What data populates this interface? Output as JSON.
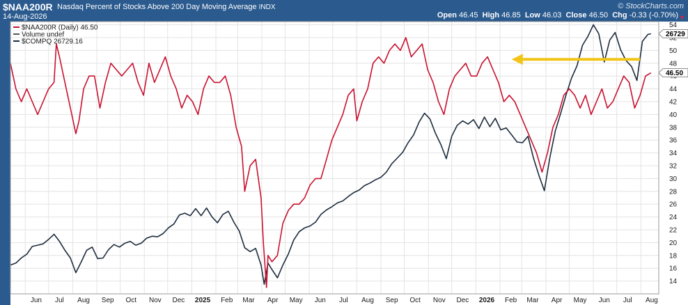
{
  "header": {
    "symbol": "$NAA200R",
    "description": "Nasdaq Percent of Stocks Above 200 Day Moving Average",
    "exchange": "INDX",
    "date": "14-Aug-2026",
    "brand": "© StockCharts.com",
    "open_label": "Open",
    "open": "46.45",
    "high_label": "High",
    "high": "46.85",
    "low_label": "Low",
    "low": "46.03",
    "close_label": "Close",
    "close": "46.50",
    "chg_label": "Chg",
    "chg": "-0.33 (-0.70%)",
    "chg_arrow": "▼"
  },
  "legend": [
    {
      "label": "$NAA200R (Daily) 46.50",
      "color": "#c8102e"
    },
    {
      "label": "Volume undef",
      "color": "#555555"
    },
    {
      "label": "$COMPQ 26729.16",
      "color": "#1c2b3d"
    }
  ],
  "colors": {
    "naa": "#c8102e",
    "compq": "#1c2b3d",
    "arrow": "#f2c418",
    "frame": "#2a5a8e",
    "grid": "#e3e3e3"
  },
  "tags": {
    "compq": "26729",
    "naa": "46.50"
  },
  "chart_data": {
    "type": "line",
    "x_tick_labels": [
      "Jun",
      "Jul",
      "Aug",
      "Sep",
      "Oct",
      "Nov",
      "Dec",
      "2025",
      "Feb",
      "Mar",
      "Apr",
      "May",
      "Jun",
      "Jul",
      "Aug",
      "Sep",
      "Oct",
      "Nov",
      "Dec",
      "2026",
      "Feb",
      "Mar",
      "Apr",
      "May",
      "Jun",
      "Jul",
      "Aug"
    ],
    "bold_x_labels": [
      "2025",
      "2026"
    ],
    "y_tick_labels": [
      14,
      16,
      18,
      20,
      22,
      24,
      26,
      28,
      30,
      32,
      34,
      36,
      38,
      40,
      42,
      44,
      46,
      48,
      50,
      52,
      54
    ],
    "ylim": [
      12,
      54.5
    ],
    "grid": true,
    "legend_position": "top-left",
    "x_start": "2024-05-13",
    "x_end": "2026-08-24",
    "series": [
      {
        "name": "$NAA200R",
        "color": "#c8102e",
        "points": [
          [
            "2024-05-13",
            48
          ],
          [
            "2024-05-20",
            44
          ],
          [
            "2024-05-27",
            42
          ],
          [
            "2024-06-03",
            44
          ],
          [
            "2024-06-10",
            42
          ],
          [
            "2024-06-17",
            40
          ],
          [
            "2024-06-24",
            42
          ],
          [
            "2024-07-01",
            44
          ],
          [
            "2024-07-08",
            45
          ],
          [
            "2024-07-11",
            51
          ],
          [
            "2024-07-15",
            49
          ],
          [
            "2024-07-22",
            45
          ],
          [
            "2024-07-29",
            41
          ],
          [
            "2024-08-05",
            37
          ],
          [
            "2024-08-09",
            39
          ],
          [
            "2024-08-15",
            44
          ],
          [
            "2024-08-22",
            46
          ],
          [
            "2024-08-29",
            46
          ],
          [
            "2024-09-05",
            41
          ],
          [
            "2024-09-12",
            45
          ],
          [
            "2024-09-19",
            48
          ],
          [
            "2024-09-26",
            47
          ],
          [
            "2024-10-03",
            46
          ],
          [
            "2024-10-10",
            47
          ],
          [
            "2024-10-17",
            48
          ],
          [
            "2024-10-24",
            45
          ],
          [
            "2024-10-31",
            43
          ],
          [
            "2024-11-07",
            48
          ],
          [
            "2024-11-14",
            45
          ],
          [
            "2024-11-21",
            47
          ],
          [
            "2024-11-28",
            49
          ],
          [
            "2024-12-05",
            46
          ],
          [
            "2024-12-12",
            44
          ],
          [
            "2024-12-19",
            41
          ],
          [
            "2024-12-26",
            43
          ],
          [
            "2025-01-02",
            42
          ],
          [
            "2025-01-09",
            40
          ],
          [
            "2025-01-16",
            44
          ],
          [
            "2025-01-23",
            46
          ],
          [
            "2025-01-30",
            45
          ],
          [
            "2025-02-06",
            45
          ],
          [
            "2025-02-13",
            46
          ],
          [
            "2025-02-20",
            43
          ],
          [
            "2025-02-27",
            38
          ],
          [
            "2025-03-06",
            35
          ],
          [
            "2025-03-10",
            28
          ],
          [
            "2025-03-17",
            32
          ],
          [
            "2025-03-24",
            33
          ],
          [
            "2025-03-31",
            27
          ],
          [
            "2025-04-03",
            20
          ],
          [
            "2025-04-07",
            13
          ],
          [
            "2025-04-09",
            18
          ],
          [
            "2025-04-14",
            17
          ],
          [
            "2025-04-21",
            18
          ],
          [
            "2025-04-28",
            23
          ],
          [
            "2025-05-05",
            25
          ],
          [
            "2025-05-12",
            26
          ],
          [
            "2025-05-19",
            26
          ],
          [
            "2025-05-26",
            27
          ],
          [
            "2025-06-02",
            29
          ],
          [
            "2025-06-09",
            30
          ],
          [
            "2025-06-16",
            30
          ],
          [
            "2025-06-23",
            33
          ],
          [
            "2025-06-30",
            36
          ],
          [
            "2025-07-07",
            38
          ],
          [
            "2025-07-14",
            40
          ],
          [
            "2025-07-21",
            43
          ],
          [
            "2025-07-28",
            44
          ],
          [
            "2025-08-01",
            39
          ],
          [
            "2025-08-08",
            42
          ],
          [
            "2025-08-15",
            44
          ],
          [
            "2025-08-22",
            48
          ],
          [
            "2025-08-29",
            49
          ],
          [
            "2025-09-05",
            48
          ],
          [
            "2025-09-12",
            50
          ],
          [
            "2025-09-19",
            51
          ],
          [
            "2025-09-26",
            50
          ],
          [
            "2025-10-03",
            52
          ],
          [
            "2025-10-10",
            49
          ],
          [
            "2025-10-17",
            50
          ],
          [
            "2025-10-24",
            51
          ],
          [
            "2025-10-31",
            47
          ],
          [
            "2025-11-07",
            45
          ],
          [
            "2025-11-14",
            42
          ],
          [
            "2025-11-21",
            40
          ],
          [
            "2025-11-28",
            44
          ],
          [
            "2025-12-05",
            46
          ],
          [
            "2025-12-12",
            47
          ],
          [
            "2025-12-19",
            48
          ],
          [
            "2025-12-26",
            46
          ],
          [
            "2026-01-02",
            46
          ],
          [
            "2026-01-09",
            48
          ],
          [
            "2026-01-16",
            49
          ],
          [
            "2026-01-23",
            47
          ],
          [
            "2026-01-30",
            45
          ],
          [
            "2026-02-06",
            42
          ],
          [
            "2026-02-13",
            43
          ],
          [
            "2026-02-20",
            42
          ],
          [
            "2026-02-27",
            40
          ],
          [
            "2026-03-06",
            38
          ],
          [
            "2026-03-13",
            36
          ],
          [
            "2026-03-20",
            34
          ],
          [
            "2026-03-27",
            31
          ],
          [
            "2026-04-03",
            34
          ],
          [
            "2026-04-10",
            38
          ],
          [
            "2026-04-17",
            40
          ],
          [
            "2026-04-24",
            43
          ],
          [
            "2026-05-01",
            44
          ],
          [
            "2026-05-08",
            43
          ],
          [
            "2026-05-15",
            41
          ],
          [
            "2026-05-22",
            43
          ],
          [
            "2026-05-29",
            40
          ],
          [
            "2026-06-05",
            42
          ],
          [
            "2026-06-12",
            44
          ],
          [
            "2026-06-19",
            41
          ],
          [
            "2026-06-26",
            42
          ],
          [
            "2026-07-03",
            44
          ],
          [
            "2026-07-10",
            46
          ],
          [
            "2026-07-17",
            45
          ],
          [
            "2026-07-24",
            41
          ],
          [
            "2026-07-31",
            43
          ],
          [
            "2026-08-07",
            46
          ],
          [
            "2026-08-14",
            46.5
          ]
        ]
      },
      {
        "name": "$COMPQ",
        "color": "#1c2b3d",
        "points": [
          [
            "2024-05-13",
            16.5
          ],
          [
            "2024-05-20",
            16.8
          ],
          [
            "2024-05-27",
            17.6
          ],
          [
            "2024-06-03",
            18.2
          ],
          [
            "2024-06-10",
            19.4
          ],
          [
            "2024-06-17",
            19.6
          ],
          [
            "2024-06-24",
            19.8
          ],
          [
            "2024-07-01",
            20.5
          ],
          [
            "2024-07-08",
            21.3
          ],
          [
            "2024-07-15",
            20.2
          ],
          [
            "2024-07-22",
            18.8
          ],
          [
            "2024-07-29",
            17.6
          ],
          [
            "2024-08-05",
            15.3
          ],
          [
            "2024-08-12",
            17.0
          ],
          [
            "2024-08-19",
            18.8
          ],
          [
            "2024-08-26",
            19.3
          ],
          [
            "2024-09-02",
            17.5
          ],
          [
            "2024-09-09",
            17.6
          ],
          [
            "2024-09-16",
            18.9
          ],
          [
            "2024-09-23",
            19.7
          ],
          [
            "2024-09-30",
            19.3
          ],
          [
            "2024-10-07",
            19.9
          ],
          [
            "2024-10-14",
            20.2
          ],
          [
            "2024-10-21",
            19.6
          ],
          [
            "2024-10-28",
            19.9
          ],
          [
            "2024-11-04",
            20.7
          ],
          [
            "2024-11-11",
            21.0
          ],
          [
            "2024-11-18",
            20.9
          ],
          [
            "2024-11-25",
            21.4
          ],
          [
            "2024-12-02",
            22.3
          ],
          [
            "2024-12-09",
            22.9
          ],
          [
            "2024-12-16",
            24.3
          ],
          [
            "2024-12-23",
            24.6
          ],
          [
            "2024-12-30",
            24.2
          ],
          [
            "2025-01-06",
            25.3
          ],
          [
            "2025-01-13",
            24.2
          ],
          [
            "2025-01-20",
            25.4
          ],
          [
            "2025-01-27",
            24.0
          ],
          [
            "2025-02-03",
            23.1
          ],
          [
            "2025-02-10",
            24.4
          ],
          [
            "2025-02-17",
            24.9
          ],
          [
            "2025-02-24",
            23.2
          ],
          [
            "2025-03-03",
            21.8
          ],
          [
            "2025-03-10",
            19.2
          ],
          [
            "2025-03-17",
            18.6
          ],
          [
            "2025-03-24",
            19.1
          ],
          [
            "2025-03-31",
            16.5
          ],
          [
            "2025-04-04",
            13.5
          ],
          [
            "2025-04-09",
            16.8
          ],
          [
            "2025-04-14",
            15.8
          ],
          [
            "2025-04-21",
            14.5
          ],
          [
            "2025-04-28",
            16.5
          ],
          [
            "2025-05-05",
            18.2
          ],
          [
            "2025-05-12",
            20.4
          ],
          [
            "2025-05-19",
            21.7
          ],
          [
            "2025-05-26",
            22.3
          ],
          [
            "2025-06-02",
            22.6
          ],
          [
            "2025-06-09",
            23.2
          ],
          [
            "2025-06-16",
            24.4
          ],
          [
            "2025-06-23",
            25.1
          ],
          [
            "2025-06-30",
            25.6
          ],
          [
            "2025-07-07",
            26.2
          ],
          [
            "2025-07-14",
            26.5
          ],
          [
            "2025-07-21",
            27.2
          ],
          [
            "2025-07-28",
            27.8
          ],
          [
            "2025-08-04",
            28.2
          ],
          [
            "2025-08-11",
            28.9
          ],
          [
            "2025-08-18",
            29.3
          ],
          [
            "2025-08-25",
            29.8
          ],
          [
            "2025-09-01",
            30.2
          ],
          [
            "2025-09-08",
            31.0
          ],
          [
            "2025-09-15",
            32.3
          ],
          [
            "2025-09-22",
            33.2
          ],
          [
            "2025-09-29",
            34.1
          ],
          [
            "2025-10-06",
            35.6
          ],
          [
            "2025-10-13",
            36.8
          ],
          [
            "2025-10-20",
            38.8
          ],
          [
            "2025-10-27",
            40.2
          ],
          [
            "2025-11-03",
            39.3
          ],
          [
            "2025-11-10",
            37.1
          ],
          [
            "2025-11-17",
            35.3
          ],
          [
            "2025-11-24",
            33.1
          ],
          [
            "2025-12-01",
            36.6
          ],
          [
            "2025-12-08",
            38.3
          ],
          [
            "2025-12-15",
            39.0
          ],
          [
            "2025-12-22",
            38.5
          ],
          [
            "2025-12-29",
            39.2
          ],
          [
            "2026-01-05",
            37.8
          ],
          [
            "2026-01-12",
            39.6
          ],
          [
            "2026-01-19",
            38.1
          ],
          [
            "2026-01-26",
            39.4
          ],
          [
            "2026-02-02",
            37.6
          ],
          [
            "2026-02-09",
            37.9
          ],
          [
            "2026-02-16",
            36.8
          ],
          [
            "2026-02-23",
            35.7
          ],
          [
            "2026-03-02",
            35.6
          ],
          [
            "2026-03-09",
            36.6
          ],
          [
            "2026-03-16",
            33.2
          ],
          [
            "2026-03-23",
            30.5
          ],
          [
            "2026-03-30",
            28.1
          ],
          [
            "2026-04-06",
            33.2
          ],
          [
            "2026-04-13",
            37.4
          ],
          [
            "2026-04-20",
            40.2
          ],
          [
            "2026-04-27",
            43.1
          ],
          [
            "2026-05-04",
            45.7
          ],
          [
            "2026-05-11",
            47.6
          ],
          [
            "2026-05-18",
            50.8
          ],
          [
            "2026-05-25",
            52.2
          ],
          [
            "2026-06-01",
            54.0
          ],
          [
            "2026-06-08",
            52.6
          ],
          [
            "2026-06-15",
            48.2
          ],
          [
            "2026-06-22",
            51.6
          ],
          [
            "2026-06-29",
            52.8
          ],
          [
            "2026-07-06",
            50.1
          ],
          [
            "2026-07-13",
            48.4
          ],
          [
            "2026-07-20",
            47.5
          ],
          [
            "2026-07-27",
            45.3
          ],
          [
            "2026-08-03",
            51.4
          ],
          [
            "2026-08-10",
            52.5
          ],
          [
            "2026-08-14",
            52.6
          ]
        ]
      }
    ],
    "annotation": {
      "type": "arrow",
      "direction": "left",
      "value": 48.6,
      "from": "2026-07-31",
      "to": "2026-02-16"
    }
  }
}
